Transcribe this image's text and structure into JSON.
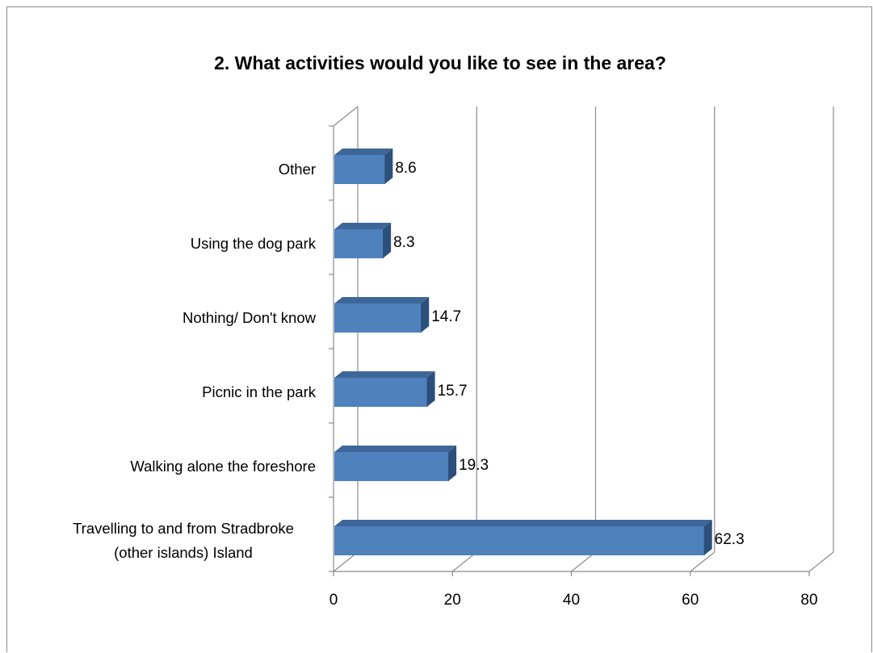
{
  "chart_data": {
    "type": "bar",
    "orientation": "horizontal",
    "title": "2.  What activities would you like to see in the area?",
    "categories": [
      "Travelling to and from Stradbroke (other islands) Island",
      "Walking alone the foreshore",
      "Picnic in the park",
      "Nothing/ Don't know",
      "Using the dog park",
      "Other"
    ],
    "category_lines": [
      [
        "Travelling to and from Stradbroke",
        "(other islands) Island"
      ],
      [
        "Walking alone the foreshore"
      ],
      [
        "Picnic in the park"
      ],
      [
        "Nothing/ Don't know"
      ],
      [
        "Using the dog park"
      ],
      [
        "Other"
      ]
    ],
    "values": [
      62.3,
      19.3,
      15.7,
      14.7,
      8.3,
      8.6
    ],
    "value_labels": [
      "62.3",
      "19.3",
      "15.7",
      "14.7",
      "8.3",
      "8.6"
    ],
    "xlim": [
      0,
      80
    ],
    "xticks": [
      0,
      20,
      40,
      60,
      80
    ],
    "xtick_labels": [
      "0",
      "20",
      "40",
      "60",
      "80"
    ],
    "grid": true,
    "legend": "none",
    "style": "3d-bar",
    "colors": {
      "bar_front": "#4f81bd",
      "bar_top": "#3d6699",
      "bar_side": "#2c4f7b",
      "gridline": "#8c8c8c"
    }
  }
}
